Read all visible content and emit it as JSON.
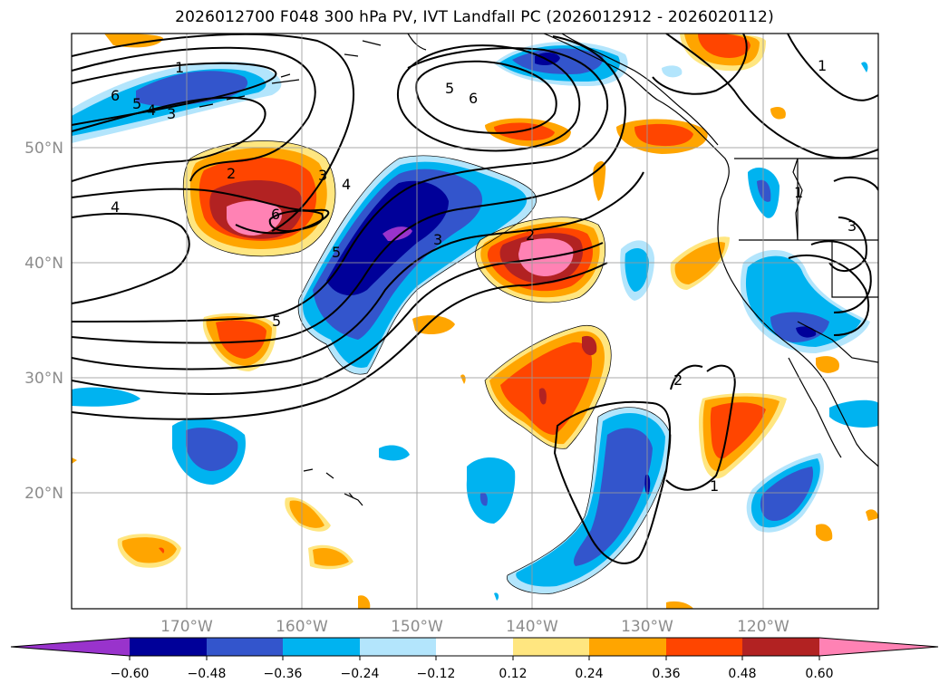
{
  "title": "2026012700 F048 300 hPa PV, IVT Landfall PC (2026012912 - 2026020112)",
  "lat_labels": [
    "50°N",
    "40°N",
    "30°N",
    "20°N"
  ],
  "lon_labels": [
    "170°W",
    "160°W",
    "150°W",
    "140°W",
    "130°W",
    "120°W"
  ],
  "colorbar": {
    "colors": [
      "#9933cc",
      "#000099",
      "#3355cc",
      "#00b3f0",
      "#b3e5fc",
      "#ffffff",
      "#ffe680",
      "#ffa500",
      "#ff4500",
      "#b22222",
      "#ff82b4"
    ],
    "tick_labels": [
      "−0.60",
      "−0.48",
      "−0.36",
      "−0.24",
      "−0.12",
      "0.12",
      "0.24",
      "0.36",
      "0.48",
      "0.60"
    ]
  },
  "contour_labels": [
    "6",
    "5",
    "4",
    "3",
    "1",
    "5",
    "6",
    "2",
    "3",
    "4",
    "6",
    "4",
    "5",
    "3",
    "2",
    "5",
    "2",
    "1",
    "1",
    "1",
    "3"
  ]
}
